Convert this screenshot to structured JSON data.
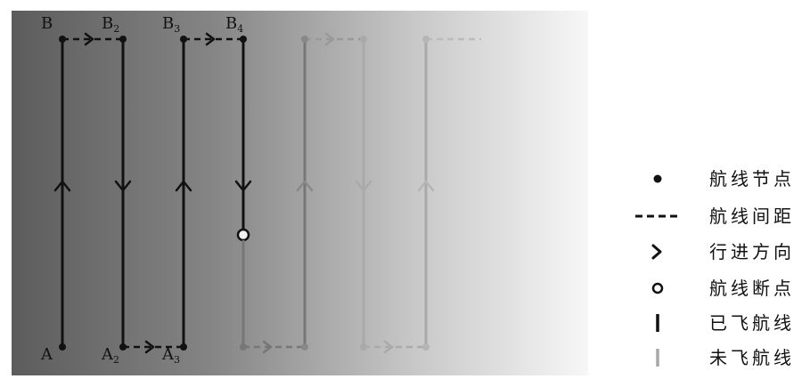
{
  "waypoint_labels": {
    "B1": {
      "base": "B",
      "sub": ""
    },
    "B2": {
      "base": "B",
      "sub": "2"
    },
    "B3": {
      "base": "B",
      "sub": "3"
    },
    "B4": {
      "base": "B",
      "sub": "4"
    },
    "A1": {
      "base": "A",
      "sub": ""
    },
    "A2": {
      "base": "A",
      "sub": "2"
    },
    "A3": {
      "base": "A",
      "sub": "3"
    }
  },
  "legend": {
    "node": "航线节点",
    "spacing": "航线间距",
    "direction": "行进方向",
    "breakpoint": "航线断点",
    "flown": "已飞航线",
    "unflown": "未飞航线"
  },
  "colors": {
    "flown": "#111111",
    "unflown": "#7a7a7a",
    "faint": "#a8a8a8",
    "background_dark": "#5a5a5a",
    "background_light": "#f5f5f5"
  }
}
